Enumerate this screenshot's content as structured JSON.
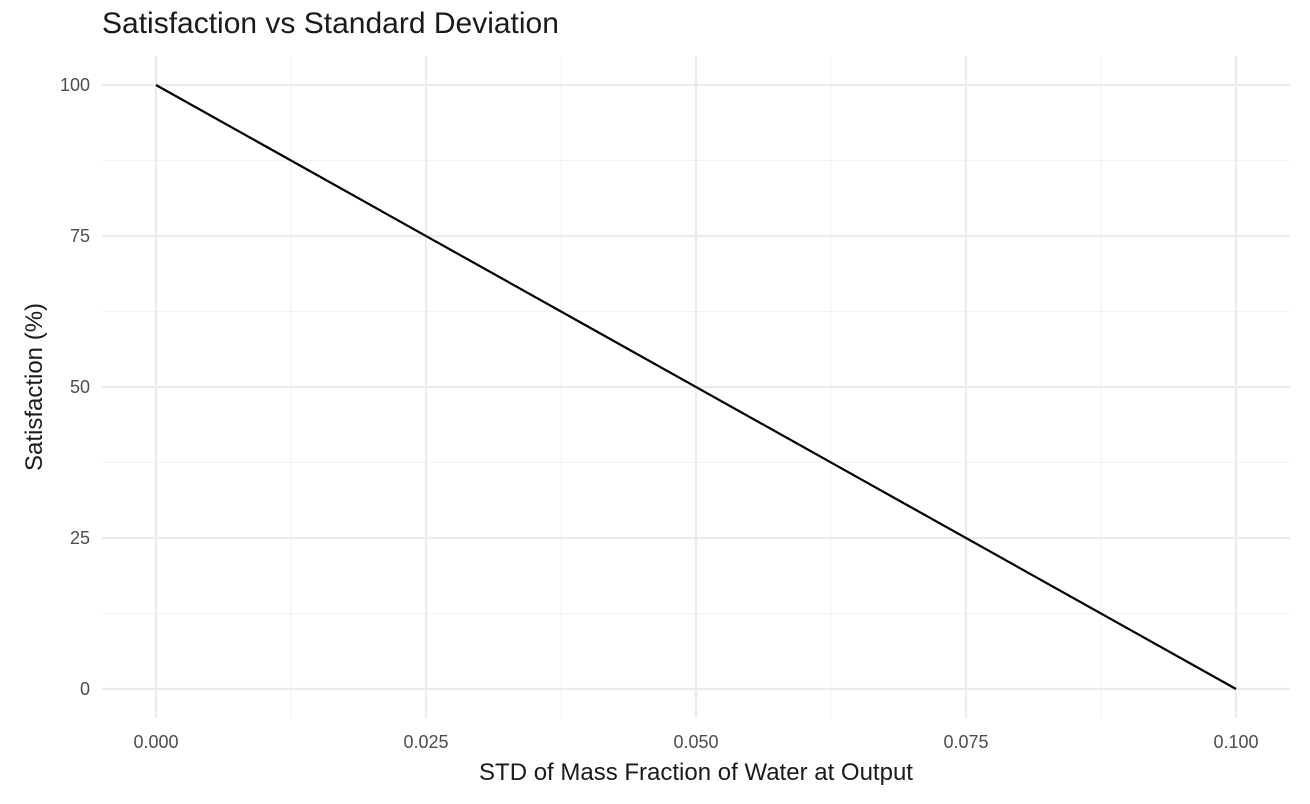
{
  "chart_data": {
    "type": "line",
    "title": "Satisfaction vs Standard Deviation",
    "xlabel": "STD of Mass Fraction of Water at Output",
    "ylabel": "Satisfaction (%)",
    "xlim": [
      0,
      0.1
    ],
    "ylim": [
      0,
      100
    ],
    "x_ticks": [
      0,
      0.025,
      0.05,
      0.075,
      0.1
    ],
    "x_tick_labels": [
      "0.000",
      "0.025",
      "0.050",
      "0.075",
      "0.100"
    ],
    "y_ticks": [
      0,
      25,
      50,
      75,
      100
    ],
    "y_tick_labels": [
      "0",
      "25",
      "50",
      "75",
      "100"
    ],
    "grid": true,
    "legend": "none",
    "series": [
      {
        "color": "#000000",
        "x": [
          0,
          0.1
        ],
        "y": [
          100,
          0
        ]
      }
    ]
  }
}
